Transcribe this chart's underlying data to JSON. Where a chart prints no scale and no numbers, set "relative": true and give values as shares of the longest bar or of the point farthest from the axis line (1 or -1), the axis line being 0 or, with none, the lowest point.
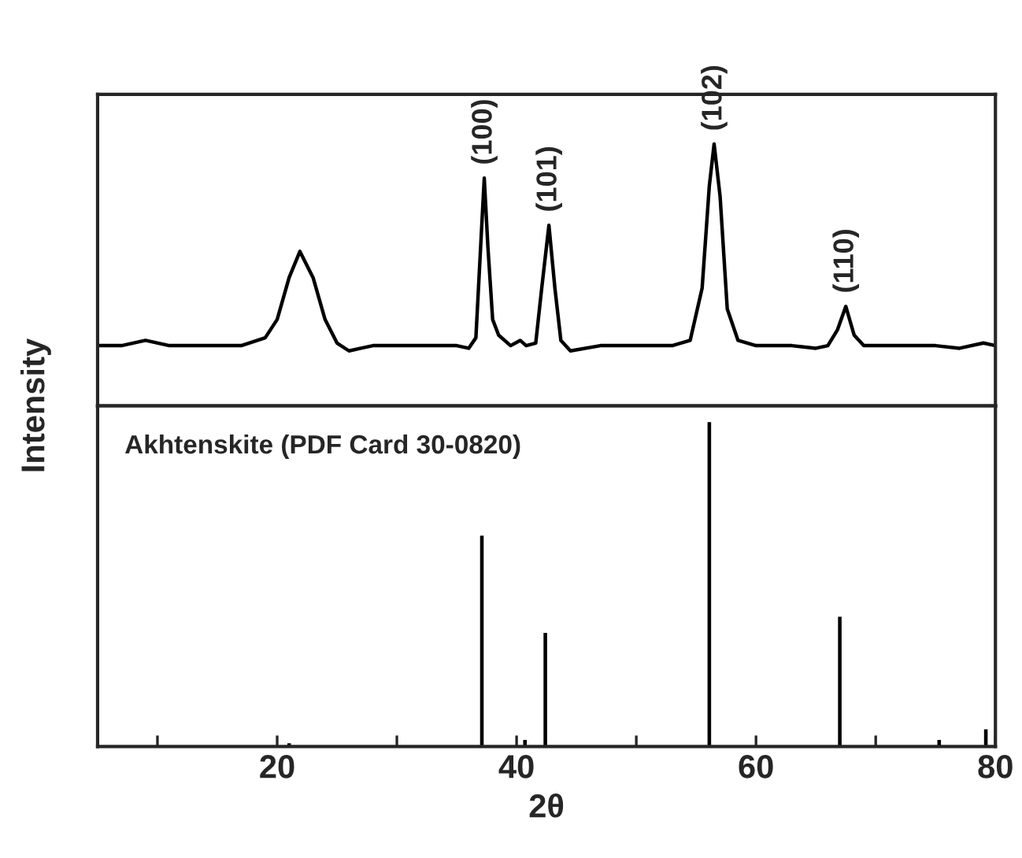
{
  "chart_data": [
    {
      "type": "line",
      "relative": true,
      "ylabel": "Intensity",
      "xlim": [
        5,
        80
      ],
      "tick_labels": false,
      "x": [
        5,
        7,
        9,
        11,
        14,
        17,
        19,
        20,
        21,
        21.9,
        23,
        24,
        25,
        26,
        27,
        28,
        30,
        33,
        35,
        36,
        36.6,
        37.0,
        37.3,
        37.6,
        38,
        38.5,
        39.5,
        40.3,
        40.8,
        41.6,
        42.1,
        42.7,
        43.2,
        43.7,
        44.5,
        47,
        50,
        53,
        54.5,
        55.5,
        56.1,
        56.5,
        57.0,
        57.6,
        58.5,
        60,
        63,
        65,
        66,
        66.8,
        67.5,
        68.2,
        69,
        72,
        75,
        77,
        79,
        80
      ],
      "series": [
        {
          "color": "#000000",
          "values": [
            0.23,
            0.23,
            0.25,
            0.23,
            0.23,
            0.23,
            0.26,
            0.33,
            0.49,
            0.59,
            0.49,
            0.33,
            0.24,
            0.21,
            0.22,
            0.23,
            0.23,
            0.23,
            0.23,
            0.22,
            0.26,
            0.61,
            0.87,
            0.61,
            0.33,
            0.27,
            0.23,
            0.25,
            0.23,
            0.24,
            0.45,
            0.69,
            0.45,
            0.25,
            0.21,
            0.23,
            0.23,
            0.23,
            0.25,
            0.45,
            0.84,
            1.0,
            0.8,
            0.37,
            0.25,
            0.23,
            0.23,
            0.22,
            0.23,
            0.29,
            0.38,
            0.27,
            0.23,
            0.23,
            0.23,
            0.22,
            0.24,
            0.23
          ]
        }
      ],
      "annotations": [
        {
          "text": "(100)",
          "x": 37.3,
          "y": 0.87
        },
        {
          "text": "(101)",
          "x": 42.7,
          "y": 0.69
        },
        {
          "text": "(102)",
          "x": 56.5,
          "y": 1.0
        },
        {
          "text": "(110)",
          "x": 67.5,
          "y": 0.38
        }
      ]
    },
    {
      "type": "bar",
      "relative": true,
      "xlabel": "2θ",
      "xlim": [
        5,
        80
      ],
      "tick_labels": "x",
      "xticks": [
        {
          "value": 10,
          "label": null
        },
        20,
        {
          "value": 30,
          "label": null
        },
        40,
        {
          "value": 50,
          "label": null
        },
        60,
        {
          "value": 70,
          "label": null
        },
        80
      ],
      "x": [
        21.0,
        37.1,
        40.7,
        42.4,
        56.1,
        67.0,
        75.3,
        79.2
      ],
      "series": [
        {
          "color": "#000000",
          "values": [
            0.01,
            0.65,
            0.02,
            0.35,
            1.0,
            0.4,
            0.02,
            0.053
          ]
        }
      ],
      "annotations": [
        "Akhtenskite (PDF Card 30-0820)"
      ]
    }
  ]
}
